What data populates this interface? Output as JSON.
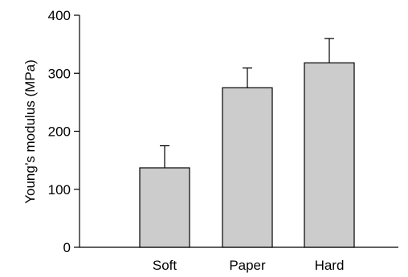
{
  "chart_data": {
    "type": "bar",
    "title": "",
    "xlabel": "",
    "ylabel": "Young’s modulus (MPa)",
    "ylim": [
      0,
      400
    ],
    "yticks": [
      0,
      100,
      200,
      300,
      400
    ],
    "categories": [
      "Soft",
      "Paper",
      "Hard"
    ],
    "values": [
      137,
      275,
      318
    ],
    "errors": [
      38,
      34,
      42
    ],
    "bar_color": "#cccccc",
    "grid": false,
    "legend": "none"
  }
}
